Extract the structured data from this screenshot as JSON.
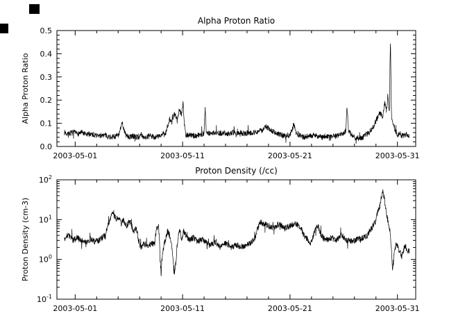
{
  "page": {
    "background": "#ffffff",
    "ink_color": "#000000"
  },
  "chart_data": [
    {
      "type": "line",
      "id": "alpha-proton-ratio",
      "title": "Alpha Proton Ratio",
      "ylabel": "Alpha Proton Ratio",
      "xlabel": "",
      "yscale": "linear",
      "ylim": [
        0.0,
        0.5
      ],
      "yticks": [
        {
          "v": 0.0,
          "label": "0.0"
        },
        {
          "v": 0.1,
          "label": "0.1"
        },
        {
          "v": 0.2,
          "label": "0.2"
        },
        {
          "v": 0.3,
          "label": "0.3"
        },
        {
          "v": 0.4,
          "label": "0.4"
        },
        {
          "v": 0.5,
          "label": "0.5"
        }
      ],
      "y_minor_step": 0.02,
      "x_unit": "days since 2003-05-01",
      "xlim": [
        -1.7,
        31.7
      ],
      "xticks": [
        {
          "v": 0,
          "label": "2003-05-01"
        },
        {
          "v": 10,
          "label": "2003-05-11"
        },
        {
          "v": 20,
          "label": "2003-05-21"
        },
        {
          "v": 30,
          "label": "2003-05-31"
        }
      ],
      "x_minor_step": 2,
      "grid": false,
      "legend": "none",
      "line_color": "#000000",
      "noise": {
        "mode": "absolute",
        "amp": 0.012,
        "spike_prob": 0.03,
        "spike_amp": 0.05
      },
      "data_range": [
        -1.0,
        31.1
      ],
      "anchors": [
        [
          -1.0,
          0.06
        ],
        [
          -0.6,
          0.055
        ],
        [
          -0.2,
          0.06
        ],
        [
          0.2,
          0.055
        ],
        [
          0.6,
          0.06
        ],
        [
          1.0,
          0.05
        ],
        [
          1.4,
          0.055
        ],
        [
          1.8,
          0.05
        ],
        [
          2.2,
          0.045
        ],
        [
          2.6,
          0.05
        ],
        [
          3.0,
          0.045
        ],
        [
          3.4,
          0.04
        ],
        [
          3.8,
          0.045
        ],
        [
          4.1,
          0.05
        ],
        [
          4.35,
          0.11
        ],
        [
          4.5,
          0.08
        ],
        [
          4.7,
          0.05
        ],
        [
          5.0,
          0.04
        ],
        [
          5.4,
          0.045
        ],
        [
          5.8,
          0.04
        ],
        [
          6.2,
          0.045
        ],
        [
          6.6,
          0.04
        ],
        [
          7.0,
          0.045
        ],
        [
          7.4,
          0.04
        ],
        [
          7.8,
          0.045
        ],
        [
          8.1,
          0.05
        ],
        [
          8.4,
          0.05
        ],
        [
          8.6,
          0.09
        ],
        [
          8.8,
          0.12
        ],
        [
          9.0,
          0.1
        ],
        [
          9.2,
          0.14
        ],
        [
          9.5,
          0.12
        ],
        [
          9.7,
          0.16
        ],
        [
          9.9,
          0.14
        ],
        [
          10.05,
          0.19
        ],
        [
          10.15,
          0.1
        ],
        [
          10.3,
          0.05
        ],
        [
          10.7,
          0.05
        ],
        [
          11.1,
          0.045
        ],
        [
          11.5,
          0.05
        ],
        [
          11.9,
          0.055
        ],
        [
          12.0,
          0.06
        ],
        [
          12.1,
          0.17
        ],
        [
          12.2,
          0.06
        ],
        [
          12.6,
          0.055
        ],
        [
          13.0,
          0.06
        ],
        [
          13.4,
          0.055
        ],
        [
          13.8,
          0.06
        ],
        [
          14.2,
          0.055
        ],
        [
          14.6,
          0.06
        ],
        [
          15.0,
          0.055
        ],
        [
          15.4,
          0.06
        ],
        [
          15.8,
          0.055
        ],
        [
          16.2,
          0.06
        ],
        [
          16.6,
          0.06
        ],
        [
          17.0,
          0.065
        ],
        [
          17.4,
          0.07
        ],
        [
          17.8,
          0.085
        ],
        [
          18.1,
          0.075
        ],
        [
          18.4,
          0.065
        ],
        [
          18.8,
          0.055
        ],
        [
          19.2,
          0.05
        ],
        [
          19.6,
          0.045
        ],
        [
          20.0,
          0.05
        ],
        [
          20.35,
          0.095
        ],
        [
          20.6,
          0.055
        ],
        [
          21.0,
          0.045
        ],
        [
          21.4,
          0.04
        ],
        [
          21.8,
          0.045
        ],
        [
          22.2,
          0.05
        ],
        [
          22.6,
          0.045
        ],
        [
          23.0,
          0.04
        ],
        [
          23.4,
          0.045
        ],
        [
          23.8,
          0.04
        ],
        [
          24.2,
          0.045
        ],
        [
          24.6,
          0.05
        ],
        [
          25.0,
          0.055
        ],
        [
          25.2,
          0.07
        ],
        [
          25.3,
          0.17
        ],
        [
          25.45,
          0.07
        ],
        [
          25.7,
          0.05
        ],
        [
          26.0,
          0.04
        ],
        [
          26.4,
          0.035
        ],
        [
          26.8,
          0.04
        ],
        [
          27.0,
          0.05
        ],
        [
          27.4,
          0.06
        ],
        [
          27.8,
          0.09
        ],
        [
          28.1,
          0.12
        ],
        [
          28.4,
          0.15
        ],
        [
          28.6,
          0.12
        ],
        [
          28.8,
          0.19
        ],
        [
          29.0,
          0.16
        ],
        [
          29.1,
          0.22
        ],
        [
          29.25,
          0.15
        ],
        [
          29.35,
          0.46
        ],
        [
          29.45,
          0.12
        ],
        [
          29.6,
          0.1
        ],
        [
          29.8,
          0.07
        ],
        [
          30.0,
          0.05
        ],
        [
          30.4,
          0.045
        ],
        [
          30.8,
          0.05
        ],
        [
          31.1,
          0.045
        ]
      ]
    },
    {
      "type": "line",
      "id": "proton-density",
      "title": "Proton Density (/cc)",
      "ylabel": "Proton Density (cm-3)",
      "xlabel": "",
      "yscale": "log",
      "ylim": [
        0.1,
        100
      ],
      "yticks": [
        {
          "v": 0.1,
          "label": "10",
          "exp": "-1"
        },
        {
          "v": 1,
          "label": "10",
          "exp": "0"
        },
        {
          "v": 10,
          "label": "10",
          "exp": "1"
        },
        {
          "v": 100,
          "label": "10",
          "exp": "2"
        }
      ],
      "x_unit": "days since 2003-05-01",
      "xlim": [
        -1.7,
        31.7
      ],
      "xticks": [
        {
          "v": 0,
          "label": "2003-05-01"
        },
        {
          "v": 10,
          "label": "2003-05-11"
        },
        {
          "v": 20,
          "label": "2003-05-21"
        },
        {
          "v": 30,
          "label": "2003-05-31"
        }
      ],
      "x_minor_step": 2,
      "grid": false,
      "legend": "none",
      "line_color": "#000000",
      "noise": {
        "mode": "multiplicative",
        "amp": 0.18,
        "spike_prob": 0.03,
        "spike_amp": 0.5
      },
      "data_range": [
        -1.0,
        31.1
      ],
      "anchors": [
        [
          -1.0,
          3.5
        ],
        [
          -0.6,
          4.0
        ],
        [
          -0.2,
          3.0
        ],
        [
          0.2,
          3.5
        ],
        [
          0.6,
          3.0
        ],
        [
          1.0,
          2.6
        ],
        [
          1.4,
          3.2
        ],
        [
          1.8,
          2.8
        ],
        [
          2.2,
          3.0
        ],
        [
          2.5,
          3.5
        ],
        [
          2.8,
          4.0
        ],
        [
          3.1,
          8.0
        ],
        [
          3.4,
          13.0
        ],
        [
          3.6,
          15.0
        ],
        [
          3.8,
          10.0
        ],
        [
          4.0,
          12.0
        ],
        [
          4.3,
          8.0
        ],
        [
          4.5,
          10.0
        ],
        [
          4.8,
          7.0
        ],
        [
          5.1,
          9.0
        ],
        [
          5.4,
          5.0
        ],
        [
          5.7,
          6.0
        ],
        [
          5.9,
          3.0
        ],
        [
          6.1,
          2.0
        ],
        [
          6.4,
          2.5
        ],
        [
          6.8,
          2.2
        ],
        [
          7.1,
          2.5
        ],
        [
          7.4,
          2.5
        ],
        [
          7.6,
          6.0
        ],
        [
          7.75,
          7.0
        ],
        [
          7.9,
          1.0
        ],
        [
          8.0,
          0.4
        ],
        [
          8.15,
          1.5
        ],
        [
          8.4,
          3.0
        ],
        [
          8.6,
          5.0
        ],
        [
          8.8,
          4.0
        ],
        [
          9.0,
          2.0
        ],
        [
          9.1,
          1.0
        ],
        [
          9.25,
          0.4
        ],
        [
          9.4,
          0.9
        ],
        [
          9.55,
          3.0
        ],
        [
          9.7,
          6.0
        ],
        [
          9.9,
          3.0
        ],
        [
          10.1,
          5.0
        ],
        [
          10.3,
          4.0
        ],
        [
          10.6,
          3.0
        ],
        [
          11.0,
          3.5
        ],
        [
          11.4,
          2.8
        ],
        [
          11.8,
          3.2
        ],
        [
          12.2,
          2.6
        ],
        [
          12.6,
          2.2
        ],
        [
          13.0,
          2.8
        ],
        [
          13.5,
          2.0
        ],
        [
          14.0,
          2.5
        ],
        [
          14.5,
          2.0
        ],
        [
          15.0,
          2.3
        ],
        [
          15.5,
          2.0
        ],
        [
          16.0,
          2.4
        ],
        [
          16.5,
          2.8
        ],
        [
          16.8,
          3.5
        ],
        [
          17.0,
          6.0
        ],
        [
          17.2,
          9.0
        ],
        [
          17.5,
          8.0
        ],
        [
          18.0,
          7.0
        ],
        [
          18.5,
          6.0
        ],
        [
          19.0,
          8.0
        ],
        [
          19.5,
          6.0
        ],
        [
          20.0,
          7.0
        ],
        [
          20.5,
          8.0
        ],
        [
          21.0,
          6.0
        ],
        [
          21.3,
          4.0
        ],
        [
          21.7,
          3.0
        ],
        [
          22.0,
          2.5
        ],
        [
          22.3,
          5.0
        ],
        [
          22.6,
          7.0
        ],
        [
          22.9,
          4.0
        ],
        [
          23.3,
          3.0
        ],
        [
          23.8,
          3.5
        ],
        [
          24.3,
          3.0
        ],
        [
          24.8,
          4.0
        ],
        [
          25.3,
          3.0
        ],
        [
          25.8,
          2.8
        ],
        [
          26.3,
          3.2
        ],
        [
          26.8,
          3.5
        ],
        [
          27.2,
          4.0
        ],
        [
          27.6,
          6.0
        ],
        [
          28.0,
          9.0
        ],
        [
          28.3,
          20.0
        ],
        [
          28.5,
          35.0
        ],
        [
          28.65,
          50.0
        ],
        [
          28.8,
          30.0
        ],
        [
          29.0,
          12.0
        ],
        [
          29.2,
          8.0
        ],
        [
          29.4,
          2.0
        ],
        [
          29.55,
          0.45
        ],
        [
          29.7,
          1.5
        ],
        [
          29.9,
          2.5
        ],
        [
          30.1,
          1.8
        ],
        [
          30.4,
          1.2
        ],
        [
          30.7,
          2.2
        ],
        [
          31.0,
          1.6
        ]
      ]
    }
  ]
}
